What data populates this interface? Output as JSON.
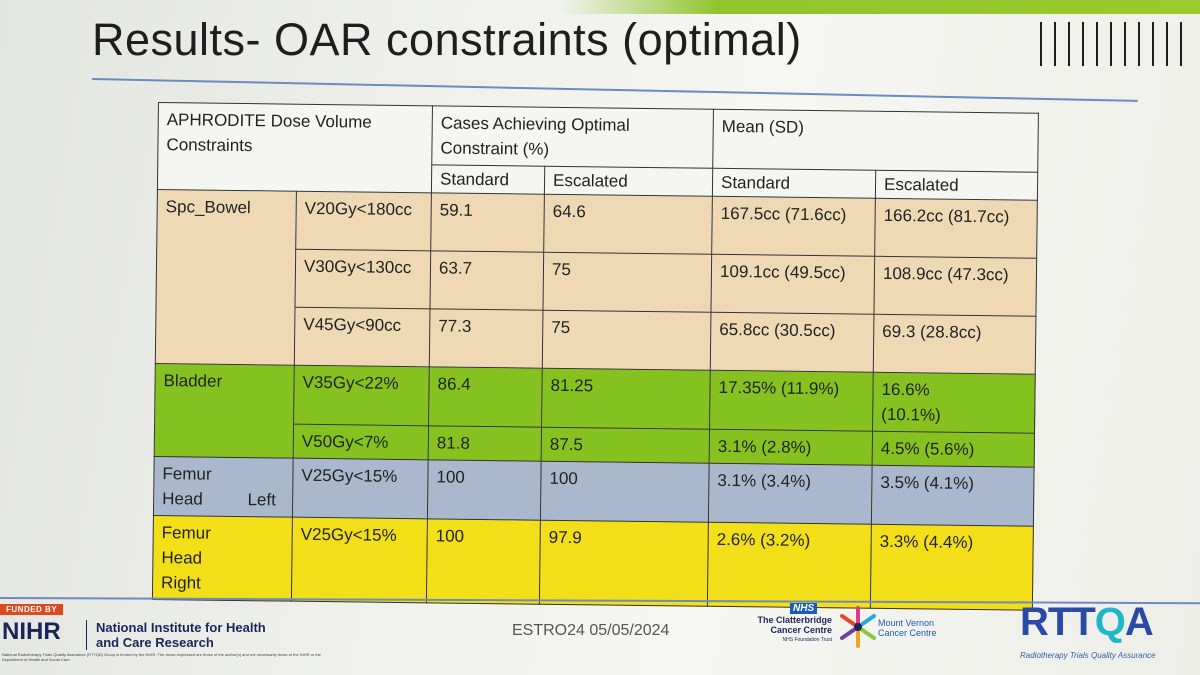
{
  "slide": {
    "title": "Results- OAR constraints (optimal)"
  },
  "table": {
    "header": {
      "constraint_col": "APHRODITE Dose Volume Constraints",
      "cases_col": "Cases Achieving Optimal Constraint (%)",
      "mean_col": "Mean (SD)",
      "sub_standard": "Standard",
      "sub_escalated": "Escalated",
      "sub_standard2": "Standard",
      "sub_escalated2": "Escalated"
    },
    "groups": [
      {
        "organ": "Spc_Bowel",
        "color": "#efd9b5",
        "rows": [
          {
            "constraint": "V20Gy<180cc",
            "cases_std": "59.1",
            "cases_esc": "64.6",
            "mean_std": "167.5cc (71.6cc)",
            "mean_esc": "166.2cc (81.7cc)"
          },
          {
            "constraint": "V30Gy<130cc",
            "cases_std": "63.7",
            "cases_esc": "75",
            "mean_std": "109.1cc (49.5cc)",
            "mean_esc": "108.9cc (47.3cc)"
          },
          {
            "constraint": "V45Gy<90cc",
            "cases_std": "77.3",
            "cases_esc": "75",
            "mean_std": "65.8cc (30.5cc)",
            "mean_esc": "69.3 (28.8cc)"
          }
        ]
      },
      {
        "organ": "Bladder",
        "color": "#86c21f",
        "rows": [
          {
            "constraint": "V35Gy<22%",
            "cases_std": "86.4",
            "cases_esc": "81.25",
            "mean_std": "17.35% (11.9%)",
            "mean_esc": "16.6% (10.1%)"
          },
          {
            "constraint": "V50Gy<7%",
            "cases_std": "81.8",
            "cases_esc": "87.5",
            "mean_std": "3.1% (2.8%)",
            "mean_esc": "4.5% (5.6%)"
          }
        ]
      },
      {
        "organ": "Femur Head Left",
        "color": "#a9b8cc",
        "rows": [
          {
            "constraint": "V25Gy<15%",
            "cases_std": "100",
            "cases_esc": "100",
            "mean_std": "3.1% (3.4%)",
            "mean_esc": "3.5% (4.1%)"
          }
        ]
      },
      {
        "organ": "Femur Head Right",
        "color": "#f3df17",
        "rows": [
          {
            "constraint": "V25Gy<15%",
            "cases_std": "100",
            "cases_esc": "97.9",
            "mean_std": "2.6% (3.2%)",
            "mean_esc": "3.3% (4.4%)"
          }
        ]
      }
    ]
  },
  "footer": {
    "funded_by": "FUNDED BY",
    "nihr": "NIHR",
    "nihr_name": "National Institute for Health and Care Research",
    "nihr_small": "National Radiotherapy Trials Quality Assurance (RTTQA) Group is funded by the NIHR. The views expressed are those of the author(s) and not necessarily those of the NIHR or the Department of Health and Social Care.",
    "event": "ESTRO24 05/05/2024",
    "nhs": "NHS",
    "clatterbridge": "The Clatterbridge Cancer Centre",
    "clatterbridge_sub": "NHS Foundation Trust",
    "mount_vernon": "Mount Vernon Cancer Centre",
    "rttqa_a": "RTT",
    "rttqa_b": "Q",
    "rttqa_c": "A",
    "rttqa_sub": "Radiotherapy Trials Quality Assurance"
  }
}
